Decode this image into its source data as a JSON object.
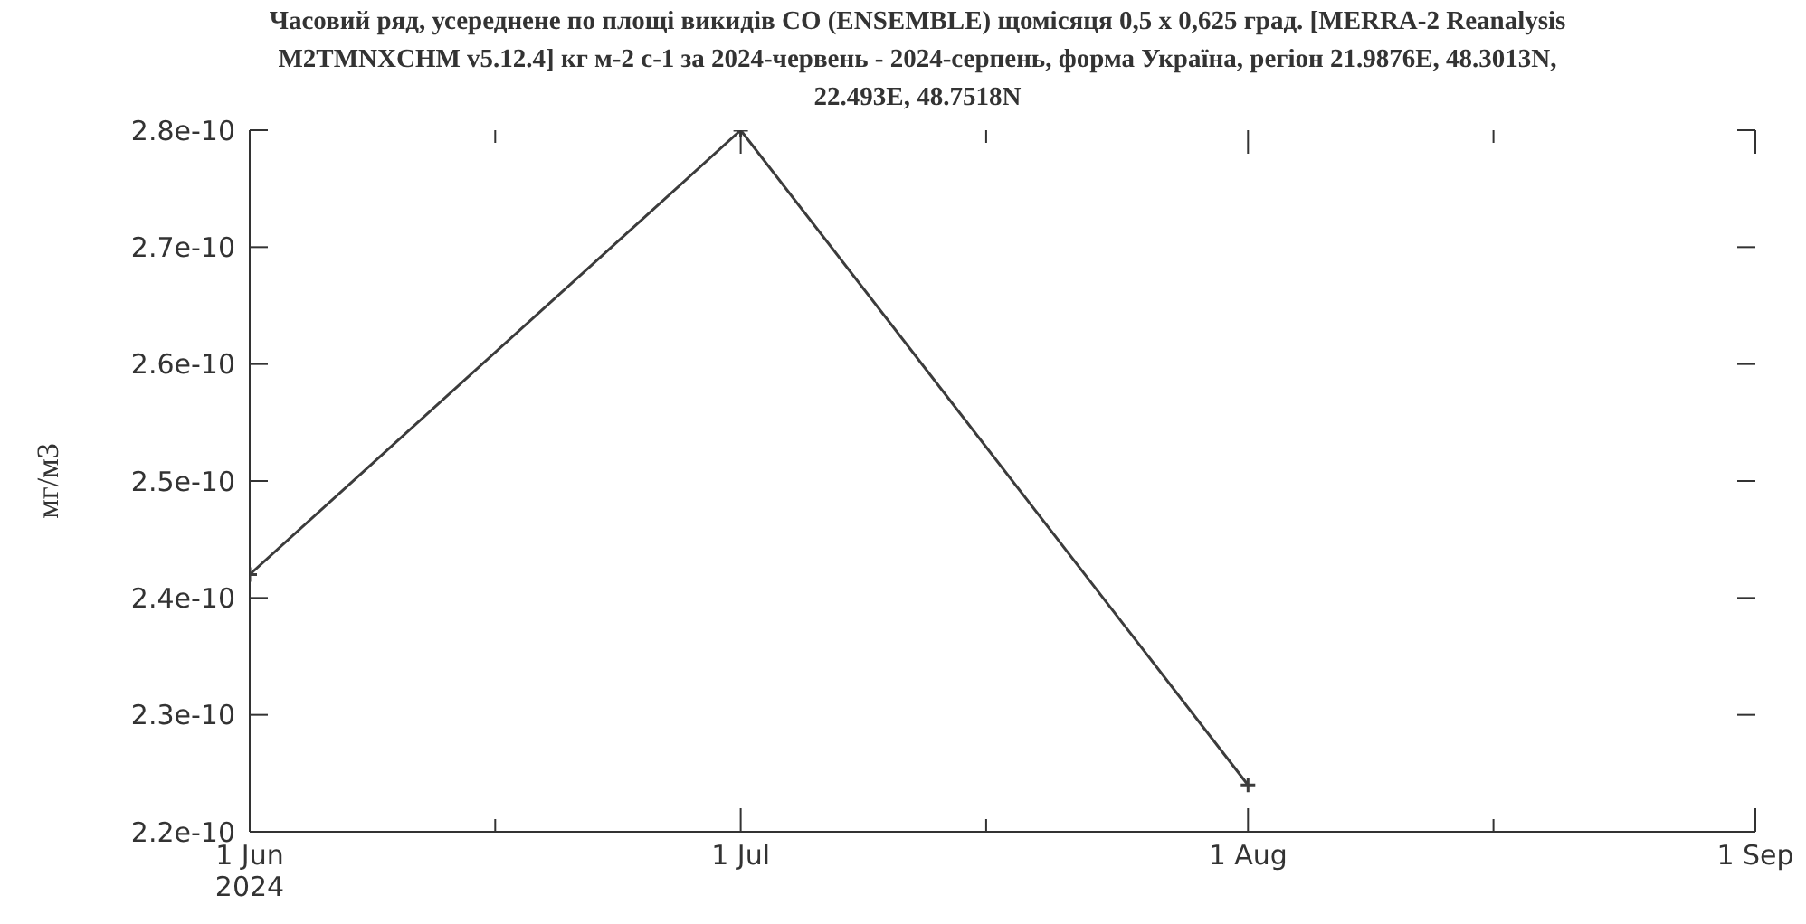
{
  "chart_data": {
    "type": "line",
    "title": "Часовий ряд, усереднене по площі викидів CO (ENSEMBLE) щомісяця 0,5 x 0,625 град. [MERRA-2 Reanalysis M2TMNXCHM v5.12.4] кг м-2 с-1 за 2024-червень - 2024-серпень, форма Україна, регіон 21.9876E, 48.3013N, 22.493E, 48.7518N",
    "ylabel": "мг/м3",
    "x": [
      "2024-06-01",
      "2024-07-01",
      "2024-08-01"
    ],
    "series": [
      {
        "color": "#3c3c3c",
        "values": [
          2.42e-10,
          2.8e-10,
          2.24e-10
        ]
      }
    ],
    "xlim": [
      "2024-06-01",
      "2024-09-01"
    ],
    "xticks": [
      {
        "value": "2024-06-01",
        "label": "1 Jun\n2024"
      },
      {
        "value": "2024-06-16",
        "label": null
      },
      {
        "value": "2024-07-01",
        "label": "1 Jul"
      },
      {
        "value": "2024-07-16",
        "label": null
      },
      {
        "value": "2024-08-01",
        "label": "1 Aug"
      },
      {
        "value": "2024-08-16",
        "label": null
      },
      {
        "value": "2024-09-01",
        "label": "1 Sep"
      }
    ],
    "ylim": [
      2.2e-10,
      2.8e-10
    ],
    "yticks": [
      2.2e-10,
      2.3e-10,
      2.4e-10,
      2.5e-10,
      2.6e-10,
      2.7e-10,
      2.8e-10
    ],
    "marker": "cross",
    "line_style": "solid"
  }
}
